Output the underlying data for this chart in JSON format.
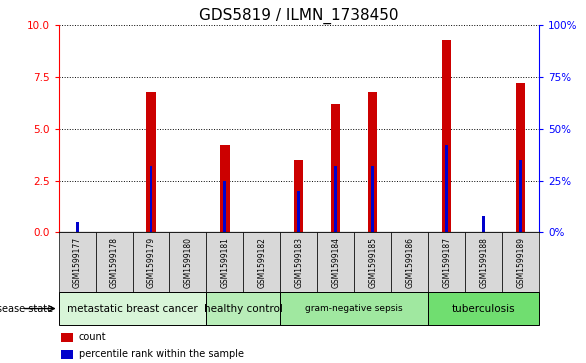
{
  "title": "GDS5819 / ILMN_1738450",
  "samples": [
    "GSM1599177",
    "GSM1599178",
    "GSM1599179",
    "GSM1599180",
    "GSM1599181",
    "GSM1599182",
    "GSM1599183",
    "GSM1599184",
    "GSM1599185",
    "GSM1599186",
    "GSM1599187",
    "GSM1599188",
    "GSM1599189"
  ],
  "count_values": [
    0.0,
    0.0,
    6.8,
    0.0,
    4.2,
    0.0,
    3.5,
    6.2,
    6.8,
    0.0,
    9.3,
    0.0,
    7.2
  ],
  "percentile_values": [
    5,
    0.0,
    32,
    0.0,
    25,
    0.0,
    20,
    32,
    32,
    0.0,
    42,
    8,
    35
  ],
  "disease_groups": [
    {
      "label": "metastatic breast cancer",
      "start": 0,
      "end": 3,
      "color": "#d8f5d8",
      "fontsize": 7.5
    },
    {
      "label": "healthy control",
      "start": 4,
      "end": 5,
      "color": "#b8edb8",
      "fontsize": 7.5
    },
    {
      "label": "gram-negative sepsis",
      "start": 6,
      "end": 9,
      "color": "#a0e8a0",
      "fontsize": 6.5
    },
    {
      "label": "tuberculosis",
      "start": 10,
      "end": 12,
      "color": "#70de70",
      "fontsize": 7.5
    }
  ],
  "ylim_left": [
    0,
    10
  ],
  "ylim_right": [
    0,
    100
  ],
  "yticks_left": [
    0,
    2.5,
    5.0,
    7.5,
    10
  ],
  "yticks_right": [
    0,
    25,
    50,
    75,
    100
  ],
  "bar_color": "#cc0000",
  "percentile_color": "#0000cc",
  "bar_width": 0.25,
  "percentile_bar_width": 0.08,
  "grid_color": "#000000",
  "legend_count_label": "count",
  "legend_percentile_label": "percentile rank within the sample",
  "disease_state_label": "disease state",
  "background_color": "#ffffff",
  "plot_bg_color": "#ffffff",
  "sample_box_color": "#d8d8d8",
  "title_fontsize": 11
}
